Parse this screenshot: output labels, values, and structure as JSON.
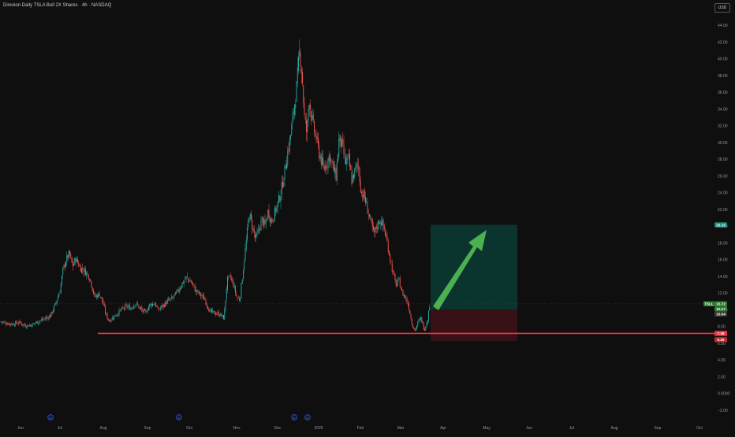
{
  "header": {
    "title": "Direxion Daily TSLA Bull 2X Shares · 4h · NASDAQ",
    "currency": "USD"
  },
  "colors": {
    "background": "#0f0f0f",
    "up": "#26a69a",
    "down": "#ef5350",
    "support_line": "#f23645",
    "target_zone": "#0b3b34",
    "stop_zone": "#3d1218",
    "arrow": "#4caf50"
  },
  "chart_data": {
    "type": "candlestick",
    "title": "Direxion Daily TSLA Bull 2X Shares · 4h · NASDAQ",
    "ylim": [
      -2,
      44
    ],
    "y_ticks": [
      "44.00",
      "42.00",
      "40.00",
      "38.00",
      "36.00",
      "34.00",
      "32.00",
      "30.00",
      "28.00",
      "26.00",
      "24.00",
      "22.00",
      "20.00",
      "18.00",
      "16.00",
      "14.00",
      "12.00",
      "10.00",
      "8.00",
      "6.00",
      "4.00",
      "2.00",
      "0.0000",
      "−2.00"
    ],
    "x_ticks": [
      "Jun",
      "Jul",
      "Aug",
      "Sep",
      "Oct",
      "Nov",
      "Dec",
      "2025",
      "Feb",
      "Mar",
      "Apr",
      "May",
      "Jun",
      "Jul",
      "Aug",
      "Sep",
      "Oct"
    ],
    "price_path": [
      [
        0,
        8.6
      ],
      [
        8,
        8.4
      ],
      [
        16,
        8.3
      ],
      [
        24,
        8.5
      ],
      [
        32,
        8.1
      ],
      [
        40,
        8.2
      ],
      [
        48,
        8.6
      ],
      [
        56,
        8.9
      ],
      [
        64,
        9.3
      ],
      [
        70,
        10.6
      ],
      [
        76,
        12.3
      ],
      [
        80,
        14.8
      ],
      [
        84,
        16.0
      ],
      [
        88,
        16.7
      ],
      [
        92,
        15.2
      ],
      [
        96,
        16.1
      ],
      [
        102,
        15.0
      ],
      [
        108,
        14.6
      ],
      [
        114,
        13.8
      ],
      [
        120,
        11.5
      ],
      [
        126,
        11.9
      ],
      [
        130,
        11.0
      ],
      [
        134,
        9.5
      ],
      [
        138,
        8.7
      ],
      [
        142,
        9.0
      ],
      [
        148,
        9.5
      ],
      [
        154,
        10.0
      ],
      [
        160,
        10.4
      ],
      [
        166,
        10.2
      ],
      [
        172,
        10.8
      ],
      [
        178,
        10.1
      ],
      [
        184,
        9.6
      ],
      [
        190,
        10.6
      ],
      [
        196,
        10.8
      ],
      [
        200,
        10.0
      ],
      [
        206,
        10.4
      ],
      [
        212,
        11.0
      ],
      [
        218,
        11.3
      ],
      [
        224,
        12.0
      ],
      [
        230,
        13.0
      ],
      [
        236,
        13.8
      ],
      [
        242,
        13.4
      ],
      [
        248,
        12.3
      ],
      [
        254,
        11.8
      ],
      [
        260,
        11.2
      ],
      [
        266,
        9.8
      ],
      [
        272,
        9.6
      ],
      [
        278,
        9.5
      ],
      [
        284,
        9.0
      ],
      [
        288,
        13.5
      ],
      [
        292,
        13.9
      ],
      [
        296,
        13.0
      ],
      [
        300,
        11.5
      ],
      [
        304,
        11.2
      ],
      [
        308,
        14.5
      ],
      [
        312,
        18.0
      ],
      [
        316,
        21.5
      ],
      [
        320,
        20.0
      ],
      [
        324,
        18.4
      ],
      [
        328,
        19.5
      ],
      [
        332,
        20.8
      ],
      [
        336,
        20.0
      ],
      [
        340,
        21.8
      ],
      [
        344,
        20.5
      ],
      [
        348,
        21.5
      ],
      [
        352,
        22.6
      ],
      [
        356,
        24.0
      ],
      [
        360,
        26.0
      ],
      [
        364,
        28.5
      ],
      [
        368,
        30.5
      ],
      [
        372,
        33.5
      ],
      [
        376,
        36.5
      ],
      [
        380,
        41.0
      ],
      [
        383,
        38.0
      ],
      [
        386,
        33.0
      ],
      [
        389,
        31.0
      ],
      [
        392,
        35.5
      ],
      [
        395,
        33.0
      ],
      [
        398,
        31.5
      ],
      [
        401,
        30.5
      ],
      [
        404,
        29.0
      ],
      [
        407,
        28.0
      ],
      [
        410,
        26.8
      ],
      [
        414,
        27.5
      ],
      [
        418,
        28.5
      ],
      [
        422,
        27.0
      ],
      [
        426,
        26.0
      ],
      [
        430,
        30.5
      ],
      [
        434,
        29.5
      ],
      [
        438,
        27.5
      ],
      [
        442,
        28.0
      ],
      [
        446,
        25.5
      ],
      [
        450,
        26.5
      ],
      [
        454,
        27.5
      ],
      [
        458,
        24.0
      ],
      [
        462,
        23.5
      ],
      [
        466,
        22.0
      ],
      [
        470,
        20.5
      ],
      [
        474,
        19.0
      ],
      [
        478,
        20.0
      ],
      [
        482,
        20.8
      ],
      [
        486,
        20.0
      ],
      [
        490,
        18.5
      ],
      [
        494,
        16.5
      ],
      [
        498,
        14.5
      ],
      [
        502,
        13.0
      ],
      [
        506,
        13.5
      ],
      [
        510,
        12.0
      ],
      [
        514,
        11.5
      ],
      [
        518,
        10.5
      ],
      [
        522,
        8.5
      ],
      [
        526,
        7.5
      ],
      [
        530,
        8.5
      ],
      [
        534,
        9.0
      ],
      [
        538,
        7.6
      ],
      [
        542,
        8.8
      ],
      [
        545,
        10.7
      ]
    ],
    "support_level": 7.18,
    "long_position": {
      "entry": 10.04,
      "target": 20.15,
      "stop": 6.26
    },
    "price_labels": [
      {
        "text": "20.15",
        "value": 20.15,
        "kind": "target"
      },
      {
        "text": "TSLL",
        "value": 10.72,
        "kind": "symbol"
      },
      {
        "text": "10.72",
        "value": 10.72,
        "kind": "last"
      },
      {
        "text": "10.17",
        "value": 10.17,
        "kind": "last"
      },
      {
        "text": "10.04",
        "value": 10.04,
        "kind": "entry"
      },
      {
        "text": "7.18",
        "value": 7.18,
        "kind": "support"
      },
      {
        "text": "6.26",
        "value": 6.26,
        "kind": "stop"
      }
    ],
    "event_markers": [
      "D",
      "D",
      "D",
      "D"
    ]
  }
}
